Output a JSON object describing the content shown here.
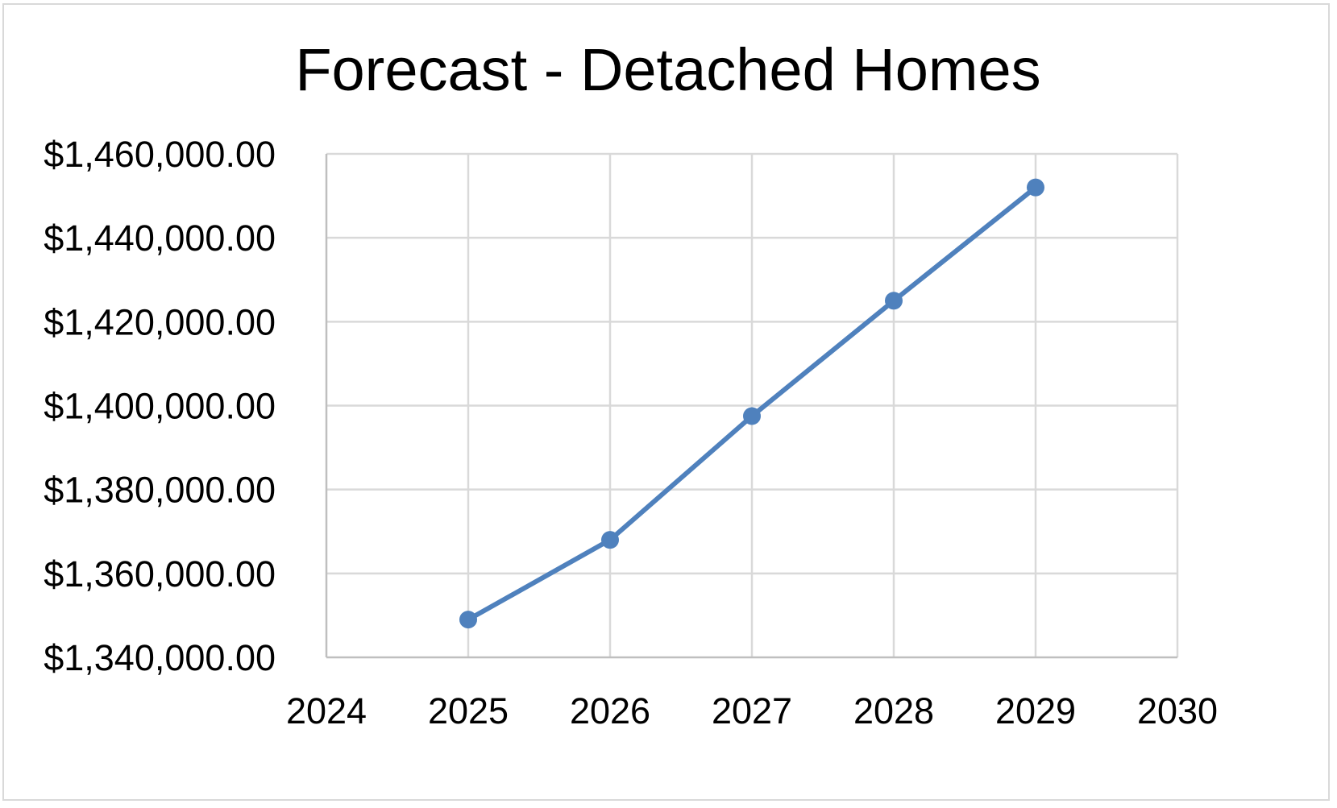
{
  "chart_data": {
    "type": "scatter",
    "title": "Forecast - Detached Homes",
    "xlabel": "",
    "ylabel": "",
    "xlim": [
      2024,
      2030
    ],
    "ylim": [
      1340000,
      1460000
    ],
    "x_ticks": [
      2024,
      2025,
      2026,
      2027,
      2028,
      2029,
      2030
    ],
    "y_ticks": [
      1340000,
      1360000,
      1380000,
      1400000,
      1420000,
      1440000,
      1460000
    ],
    "x_tick_labels": [
      "2024",
      "2025",
      "2026",
      "2027",
      "2028",
      "2029",
      "2030"
    ],
    "y_tick_labels": [
      "$1,340,000.00",
      "$1,360,000.00",
      "$1,380,000.00",
      "$1,400,000.00",
      "$1,420,000.00",
      "$1,440,000.00",
      "$1,460,000.00"
    ],
    "grid": true,
    "legend": "none",
    "series": [
      {
        "x": [
          2025,
          2026,
          2027,
          2028,
          2029
        ],
        "y": [
          1349000,
          1368000,
          1397500,
          1425000,
          1452000
        ],
        "color": "#4f81bd",
        "style": "line-with-markers"
      }
    ]
  }
}
